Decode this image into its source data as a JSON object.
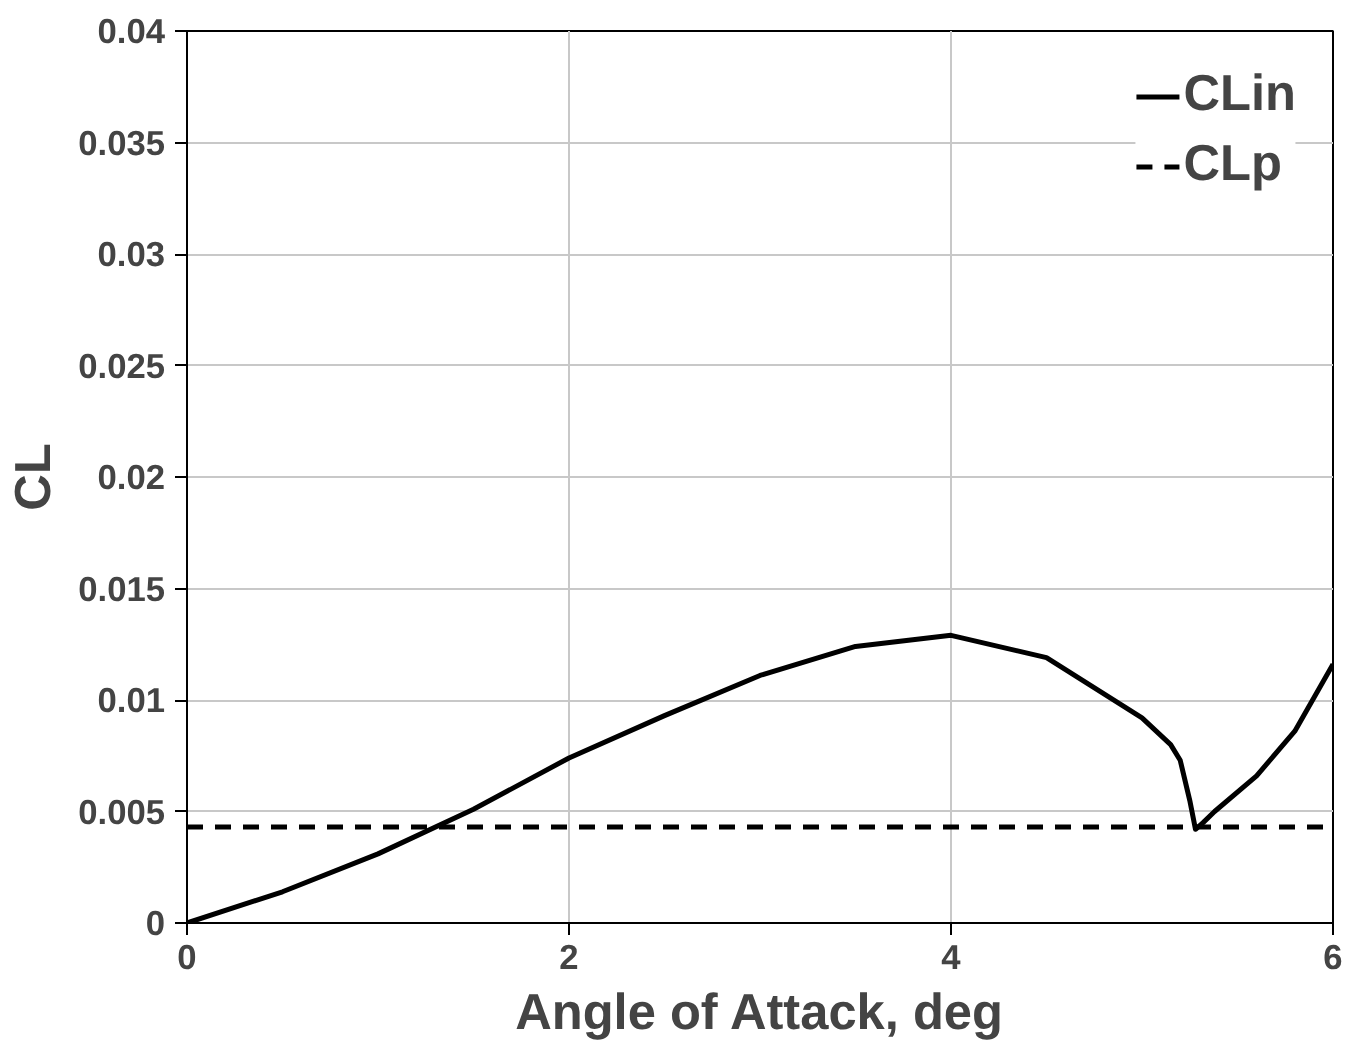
{
  "chart_data": {
    "type": "line",
    "xlabel": "Angle of Attack, deg",
    "ylabel": "CL",
    "xlim": [
      0,
      6
    ],
    "xticks": [
      0,
      2,
      4,
      6
    ],
    "ylim": [
      0,
      0.04
    ],
    "yticks": [
      0,
      0.005,
      0.01,
      0.015,
      0.02,
      0.025,
      0.03,
      0.035,
      0.04
    ],
    "grid": true,
    "legend": "top right",
    "series": [
      {
        "name": "CLin",
        "color": "#000000",
        "line_style": "solid",
        "x": [
          0,
          0.5,
          1,
          1.5,
          2,
          2.5,
          3,
          3.5,
          4,
          4.5,
          5,
          5.15,
          5.2,
          5.25,
          5.28,
          5.32,
          5.38,
          5.6,
          5.8,
          6
        ],
        "values": [
          0,
          0.0014,
          0.0031,
          0.0051,
          0.0074,
          0.0093,
          0.0111,
          0.0124,
          0.0129,
          0.0119,
          0.0092,
          0.008,
          0.0073,
          0.0055,
          0.0042,
          0.0045,
          0.005,
          0.0066,
          0.0086,
          0.0116
        ]
      },
      {
        "name": "CLp",
        "color": "#000000",
        "line_style": "dashed",
        "x": [
          0,
          6
        ],
        "values": [
          0.0043,
          0.0043
        ]
      }
    ]
  }
}
